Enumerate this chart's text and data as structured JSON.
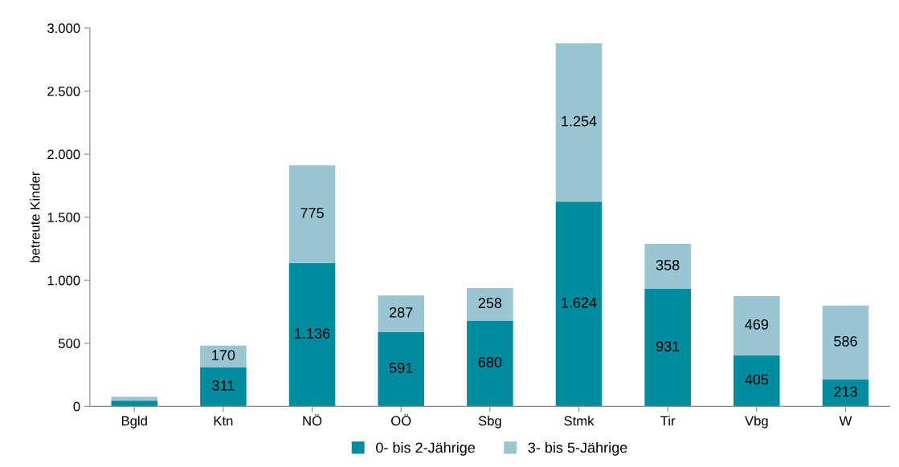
{
  "chart_data": {
    "type": "bar",
    "stacked": true,
    "ylabel": "betreute Kinder",
    "categories": [
      "Bgld",
      "Ktn",
      "NÖ",
      "OÖ",
      "Sbg",
      "Stmk",
      "Tir",
      "Vbg",
      "W"
    ],
    "series": [
      {
        "name": "0- bis 2-Jährige",
        "color": "#008b9f",
        "values": [
          45,
          311,
          1136,
          591,
          680,
          1624,
          931,
          405,
          213
        ],
        "value_labels": [
          null,
          "311",
          "1.136",
          "591",
          "680",
          "1.624",
          "931",
          "405",
          "213"
        ]
      },
      {
        "name": "3- bis 5-Jährige",
        "color": "#99c6d2",
        "values": [
          30,
          170,
          775,
          287,
          258,
          1254,
          358,
          469,
          586
        ],
        "value_labels": [
          null,
          "170",
          "775",
          "287",
          "258",
          "1.254",
          "358",
          "469",
          "586"
        ]
      }
    ],
    "ylim": [
      0,
      3000
    ],
    "yticks": [
      {
        "value": 0,
        "label": "0"
      },
      {
        "value": 500,
        "label": "500"
      },
      {
        "value": 1000,
        "label": "1.000"
      },
      {
        "value": 1500,
        "label": "1.500"
      },
      {
        "value": 2000,
        "label": "2.000"
      },
      {
        "value": 2500,
        "label": "2.500"
      },
      {
        "value": 3000,
        "label": "3.000"
      }
    ],
    "grid": false,
    "legend": "bottom"
  }
}
